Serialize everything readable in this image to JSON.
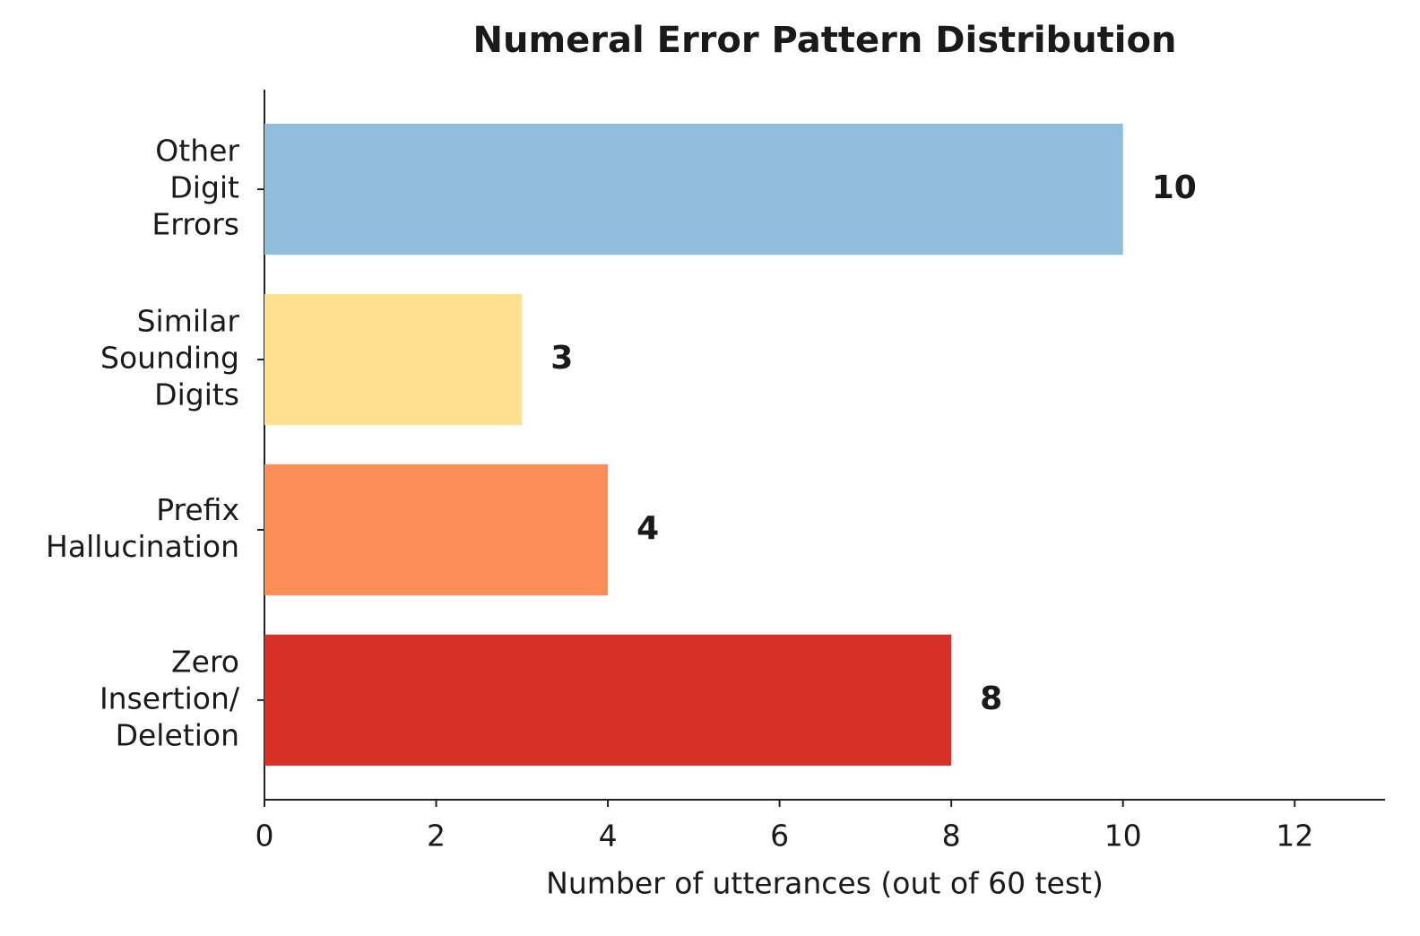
{
  "chart_data": {
    "type": "bar",
    "orientation": "horizontal",
    "title": "Numeral Error Pattern Distribution",
    "x_label": "Number of utterances (out of 60 test)",
    "categories": [
      [
        "Zero",
        "Insertion/",
        "Deletion"
      ],
      [
        "Prefix",
        "Hallucination"
      ],
      [
        "Similar",
        "Sounding",
        "Digits"
      ],
      [
        "Other",
        "Digit",
        "Errors"
      ]
    ],
    "values": [
      8,
      4,
      3,
      10
    ],
    "colors": [
      "#d73027",
      "#fc8d59",
      "#fee090",
      "#91bfdb"
    ],
    "xlim": [
      0,
      13
    ],
    "xticks": [
      0,
      2,
      4,
      6,
      8,
      10,
      12
    ]
  }
}
